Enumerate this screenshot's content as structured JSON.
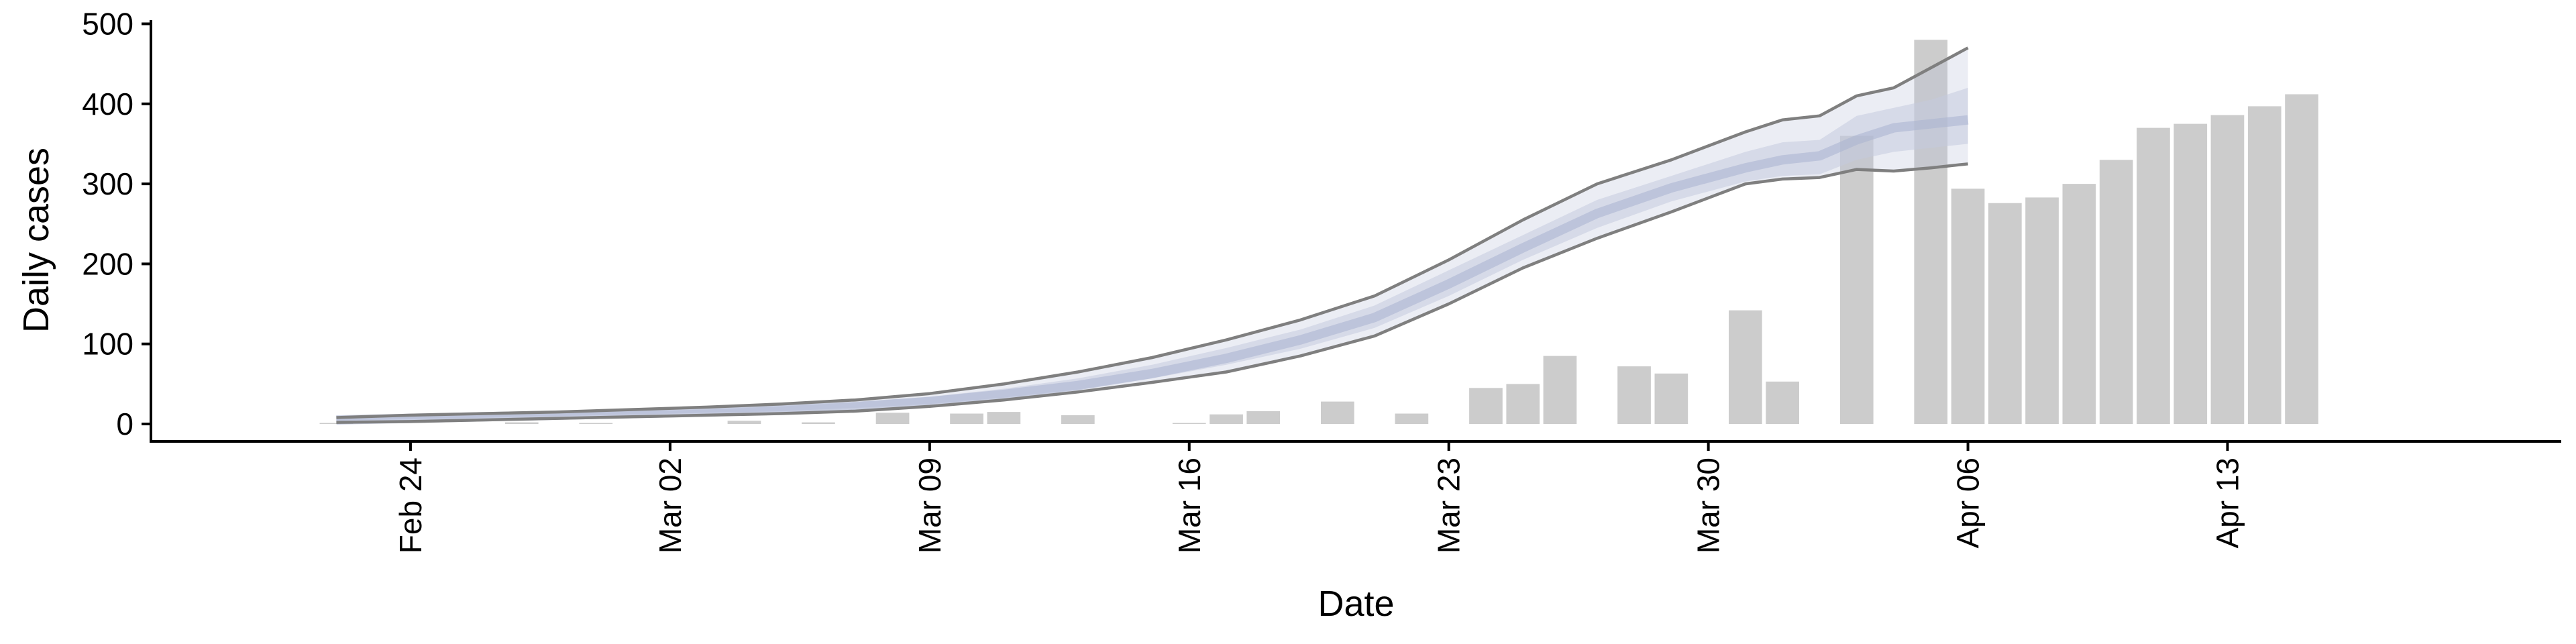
{
  "chart_data": {
    "type": "bar",
    "xlabel": "Date",
    "ylabel": "Daily cases",
    "ylim": [
      0,
      500
    ],
    "y_ticks": [
      0,
      100,
      200,
      300,
      400,
      500
    ],
    "x_ticks": [
      {
        "date": "2020-02-24",
        "label": "Feb 24"
      },
      {
        "date": "2020-03-02",
        "label": "Mar 02"
      },
      {
        "date": "2020-03-09",
        "label": "Mar 09"
      },
      {
        "date": "2020-03-16",
        "label": "Mar 16"
      },
      {
        "date": "2020-03-23",
        "label": "Mar 23"
      },
      {
        "date": "2020-03-30",
        "label": "Mar 30"
      },
      {
        "date": "2020-04-06",
        "label": "Apr 06"
      },
      {
        "date": "2020-04-13",
        "label": "Apr 13"
      }
    ],
    "xlim": [
      "2020-02-17",
      "2020-04-22"
    ],
    "grid": false,
    "bar_color": "#cccccc",
    "band_outer_color": "#b8bfd6",
    "band_inner_color": "#c5cbdf",
    "line_color": "#7f7f7f",
    "bars": [
      {
        "date": "2020-02-22",
        "value": 1
      },
      {
        "date": "2020-02-27",
        "value": 2
      },
      {
        "date": "2020-02-29",
        "value": 1
      },
      {
        "date": "2020-03-04",
        "value": 4
      },
      {
        "date": "2020-03-06",
        "value": 2
      },
      {
        "date": "2020-03-08",
        "value": 14
      },
      {
        "date": "2020-03-10",
        "value": 13
      },
      {
        "date": "2020-03-11",
        "value": 15
      },
      {
        "date": "2020-03-13",
        "value": 11
      },
      {
        "date": "2020-03-16",
        "value": 1
      },
      {
        "date": "2020-03-17",
        "value": 12
      },
      {
        "date": "2020-03-18",
        "value": 16
      },
      {
        "date": "2020-03-20",
        "value": 28
      },
      {
        "date": "2020-03-22",
        "value": 13
      },
      {
        "date": "2020-03-24",
        "value": 45
      },
      {
        "date": "2020-03-25",
        "value": 50
      },
      {
        "date": "2020-03-26",
        "value": 85
      },
      {
        "date": "2020-03-28",
        "value": 72
      },
      {
        "date": "2020-03-29",
        "value": 63
      },
      {
        "date": "2020-03-31",
        "value": 142
      },
      {
        "date": "2020-04-01",
        "value": 53
      },
      {
        "date": "2020-04-03",
        "value": 360
      },
      {
        "date": "2020-04-05",
        "value": 480
      },
      {
        "date": "2020-04-06",
        "value": 294
      },
      {
        "date": "2020-04-07",
        "value": 276
      },
      {
        "date": "2020-04-08",
        "value": 283
      },
      {
        "date": "2020-04-09",
        "value": 300
      },
      {
        "date": "2020-04-10",
        "value": 330
      },
      {
        "date": "2020-04-11",
        "value": 370
      },
      {
        "date": "2020-04-12",
        "value": 375
      },
      {
        "date": "2020-04-13",
        "value": 386
      },
      {
        "date": "2020-04-14",
        "value": 397
      },
      {
        "date": "2020-04-15",
        "value": 412
      }
    ],
    "estimate": {
      "dates": [
        "2020-02-22",
        "2020-02-24",
        "2020-02-26",
        "2020-02-28",
        "2020-03-01",
        "2020-03-03",
        "2020-03-05",
        "2020-03-07",
        "2020-03-09",
        "2020-03-11",
        "2020-03-13",
        "2020-03-15",
        "2020-03-17",
        "2020-03-19",
        "2020-03-21",
        "2020-03-23",
        "2020-03-25",
        "2020-03-27",
        "2020-03-29",
        "2020-03-31",
        "2020-04-01",
        "2020-04-02",
        "2020-04-03",
        "2020-04-04",
        "2020-04-05",
        "2020-04-06"
      ],
      "upper": [
        8,
        11,
        13,
        15,
        18,
        21,
        25,
        30,
        38,
        50,
        65,
        83,
        105,
        130,
        160,
        205,
        255,
        300,
        330,
        365,
        380,
        385,
        410,
        420,
        445,
        470
      ],
      "inner_upper": [
        6,
        9,
        11,
        13,
        16,
        18,
        22,
        27,
        34,
        44,
        57,
        74,
        95,
        118,
        148,
        192,
        236,
        280,
        310,
        340,
        352,
        355,
        385,
        395,
        405,
        420
      ],
      "median": [
        5,
        7,
        9,
        11,
        13,
        15,
        18,
        22,
        28,
        37,
        48,
        63,
        82,
        105,
        133,
        175,
        220,
        263,
        295,
        320,
        330,
        335,
        355,
        370,
        375,
        380
      ],
      "inner_lower": [
        4,
        6,
        8,
        10,
        12,
        14,
        16,
        20,
        25,
        33,
        43,
        57,
        74,
        94,
        120,
        160,
        205,
        245,
        278,
        303,
        310,
        312,
        330,
        340,
        345,
        350
      ],
      "lower": [
        2,
        3,
        5,
        7,
        9,
        11,
        13,
        16,
        22,
        30,
        40,
        52,
        65,
        85,
        110,
        150,
        195,
        232,
        265,
        300,
        306,
        308,
        318,
        316,
        320,
        325
      ]
    }
  }
}
